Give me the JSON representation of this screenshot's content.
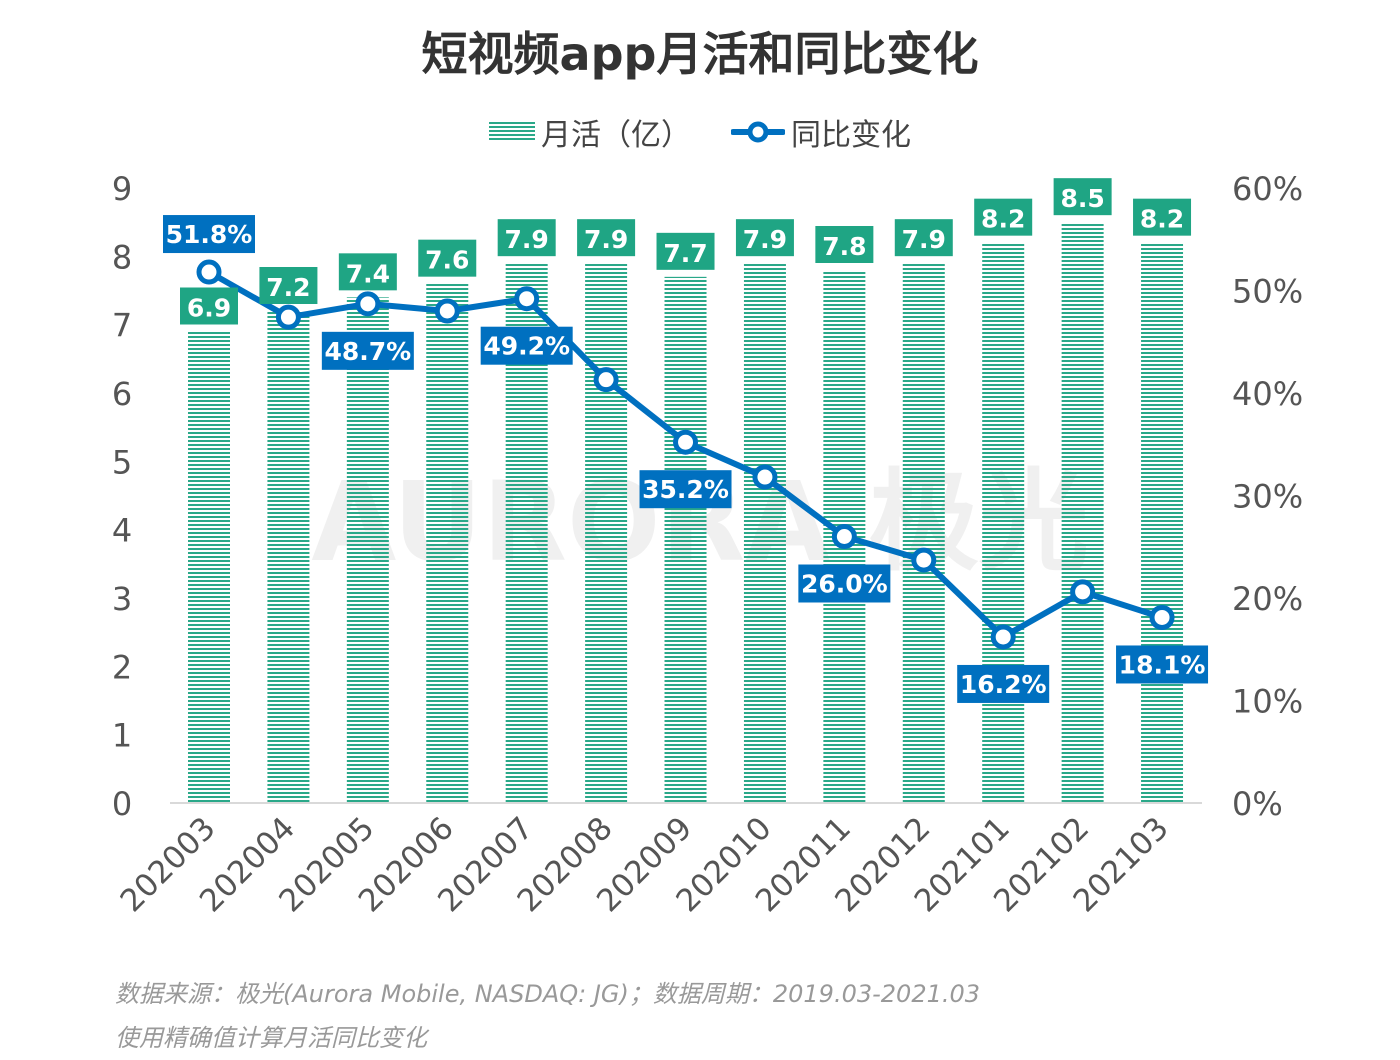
{
  "title": "短视频app月活和同比变化",
  "watermark": "AURORA 极光",
  "legend": {
    "bar": "月活（亿）",
    "line": "同比变化"
  },
  "colors": {
    "bar": "#2aa889",
    "bar_label_bg": "#1fa584",
    "line": "#0070c0",
    "axis_text": "#555"
  },
  "footer": {
    "source": "数据来源：极光(Aurora Mobile, NASDAQ: JG)；数据周期：2019.03-2021.03",
    "note": "使用精确值计算月活同比变化"
  },
  "chart_data": {
    "type": "bar+line",
    "title": "短视频app月活和同比变化",
    "categories": [
      "202003",
      "202004",
      "202005",
      "202006",
      "202007",
      "202008",
      "202009",
      "202010",
      "202011",
      "202012",
      "202101",
      "202102",
      "202103"
    ],
    "series": [
      {
        "name": "月活（亿）",
        "type": "bar",
        "axis": "left",
        "values": [
          6.9,
          7.2,
          7.4,
          7.6,
          7.9,
          7.9,
          7.7,
          7.9,
          7.8,
          7.9,
          8.2,
          8.5,
          8.2
        ],
        "labels": [
          "6.9",
          "7.2",
          "7.4",
          "7.6",
          "7.9",
          "7.9",
          "7.7",
          "7.9",
          "7.8",
          "7.9",
          "8.2",
          "8.5",
          "8.2"
        ]
      },
      {
        "name": "同比变化",
        "type": "line",
        "axis": "right",
        "values": [
          51.8,
          47.4,
          48.7,
          48.0,
          49.2,
          41.3,
          35.2,
          31.8,
          26.0,
          23.7,
          16.2,
          20.6,
          18.1
        ],
        "labels": [
          "51.8%",
          null,
          "48.7%",
          null,
          "49.2%",
          null,
          "35.2%",
          null,
          "26.0%",
          null,
          "16.2%",
          null,
          "18.1%"
        ]
      }
    ],
    "y_left": {
      "ylim": [
        0,
        9
      ],
      "ticks": [
        "0",
        "1",
        "2",
        "3",
        "4",
        "5",
        "6",
        "7",
        "8",
        "9"
      ]
    },
    "y_right": {
      "ylim": [
        0,
        60
      ],
      "ticks": [
        "0%",
        "10%",
        "20%",
        "30%",
        "40%",
        "50%",
        "60%"
      ]
    },
    "grid": false,
    "legend_position": "top"
  }
}
